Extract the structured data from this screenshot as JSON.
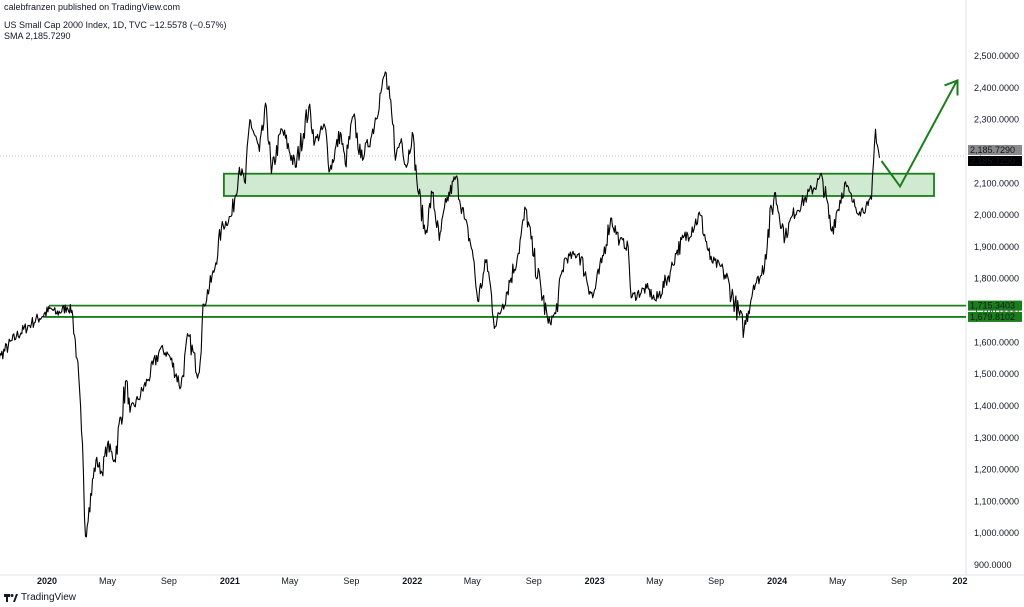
{
  "publisher_line": "calebfranzen published on TradingView.com",
  "legend": {
    "symbol_line": "US Small Cap 2000 Index, 1D, TVC  −12.5578 (−0.57%)",
    "sma_line": "SMA  2,185.7290"
  },
  "branding": {
    "text": "TradingView",
    "icon": "tradingview-logo-icon"
  },
  "colors": {
    "price": "#000000",
    "support": "#1a7f1a",
    "zone_fill": "#c8e6c9",
    "arrow": "#1a7f1a",
    "last_price_bg": "#000000",
    "sma_bg": "#8a8a8a"
  },
  "chart_data": {
    "type": "line",
    "title": "US Small Cap 2000 Index, 1D, TVC",
    "ylim": [
      900,
      2550
    ],
    "y_ticks": [
      "900.0000",
      "1,000.0000",
      "1,100.0000",
      "1,200.0000",
      "1,300.0000",
      "1,400.0000",
      "1,500.0000",
      "1,600.0000",
      "1,700.0000",
      "1,800.0000",
      "1,900.0000",
      "2,000.0000",
      "2,100.0000",
      "2,200.0000",
      "2,300.0000",
      "2,400.0000",
      "2,500.0000"
    ],
    "x_ticks": [
      {
        "label": "2020",
        "date": "2020-01-01",
        "year": true
      },
      {
        "label": "May",
        "date": "2020-05-01"
      },
      {
        "label": "Sep",
        "date": "2020-09-01"
      },
      {
        "label": "2021",
        "date": "2021-01-01",
        "year": true
      },
      {
        "label": "May",
        "date": "2021-05-01"
      },
      {
        "label": "Sep",
        "date": "2021-09-01"
      },
      {
        "label": "2022",
        "date": "2022-01-01",
        "year": true
      },
      {
        "label": "May",
        "date": "2022-05-01"
      },
      {
        "label": "Sep",
        "date": "2022-09-01"
      },
      {
        "label": "2023",
        "date": "2023-01-01",
        "year": true
      },
      {
        "label": "May",
        "date": "2023-05-01"
      },
      {
        "label": "Sep",
        "date": "2023-09-01"
      },
      {
        "label": "2024",
        "date": "2024-01-01",
        "year": true
      },
      {
        "label": "May",
        "date": "2024-05-01"
      },
      {
        "label": "Sep",
        "date": "2024-09-01"
      },
      {
        "label": "202",
        "date": "2025-01-01",
        "year": true
      }
    ],
    "series": [
      {
        "values": [
          [
            "2019-09-01",
            1480
          ],
          [
            "2019-10-01",
            1560
          ],
          [
            "2019-11-01",
            1620
          ],
          [
            "2019-12-01",
            1660
          ],
          [
            "2020-01-10",
            1705
          ],
          [
            "2020-01-20",
            1690
          ],
          [
            "2020-02-10",
            1710
          ],
          [
            "2020-02-20",
            1700
          ],
          [
            "2020-03-01",
            1550
          ],
          [
            "2020-03-10",
            1320
          ],
          [
            "2020-03-18",
            990
          ],
          [
            "2020-03-25",
            1080
          ],
          [
            "2020-04-08",
            1230
          ],
          [
            "2020-04-20",
            1190
          ],
          [
            "2020-05-01",
            1280
          ],
          [
            "2020-05-15",
            1230
          ],
          [
            "2020-06-08",
            1480
          ],
          [
            "2020-06-15",
            1380
          ],
          [
            "2020-07-01",
            1420
          ],
          [
            "2020-07-20",
            1480
          ],
          [
            "2020-08-15",
            1580
          ],
          [
            "2020-09-01",
            1560
          ],
          [
            "2020-09-25",
            1460
          ],
          [
            "2020-10-10",
            1620
          ],
          [
            "2020-10-30",
            1500
          ],
          [
            "2020-11-10",
            1720
          ],
          [
            "2020-11-30",
            1820
          ],
          [
            "2020-12-15",
            1960
          ],
          [
            "2021-01-05",
            2000
          ],
          [
            "2021-01-20",
            2150
          ],
          [
            "2021-02-01",
            2100
          ],
          [
            "2021-02-10",
            2300
          ],
          [
            "2021-03-01",
            2200
          ],
          [
            "2021-03-15",
            2340
          ],
          [
            "2021-03-25",
            2130
          ],
          [
            "2021-04-15",
            2270
          ],
          [
            "2021-05-12",
            2150
          ],
          [
            "2021-06-08",
            2340
          ],
          [
            "2021-06-20",
            2230
          ],
          [
            "2021-07-10",
            2280
          ],
          [
            "2021-07-20",
            2140
          ],
          [
            "2021-08-10",
            2260
          ],
          [
            "2021-08-20",
            2160
          ],
          [
            "2021-09-05",
            2310
          ],
          [
            "2021-09-20",
            2180
          ],
          [
            "2021-10-10",
            2240
          ],
          [
            "2021-11-01",
            2400
          ],
          [
            "2021-11-08",
            2450
          ],
          [
            "2021-11-30",
            2190
          ],
          [
            "2021-12-10",
            2240
          ],
          [
            "2021-12-20",
            2150
          ],
          [
            "2022-01-01",
            2260
          ],
          [
            "2022-01-10",
            2110
          ],
          [
            "2022-01-27",
            1940
          ],
          [
            "2022-02-10",
            2070
          ],
          [
            "2022-02-24",
            1920
          ],
          [
            "2022-03-10",
            2040
          ],
          [
            "2022-03-29",
            2120
          ],
          [
            "2022-04-15",
            1990
          ],
          [
            "2022-05-01",
            1890
          ],
          [
            "2022-05-12",
            1730
          ],
          [
            "2022-05-30",
            1860
          ],
          [
            "2022-06-16",
            1650
          ],
          [
            "2022-07-01",
            1720
          ],
          [
            "2022-08-01",
            1880
          ],
          [
            "2022-08-16",
            2020
          ],
          [
            "2022-09-01",
            1870
          ],
          [
            "2022-09-30",
            1660
          ],
          [
            "2022-10-15",
            1690
          ],
          [
            "2022-11-01",
            1860
          ],
          [
            "2022-12-01",
            1880
          ],
          [
            "2022-12-28",
            1740
          ],
          [
            "2023-01-15",
            1850
          ],
          [
            "2023-02-02",
            1990
          ],
          [
            "2023-02-20",
            1920
          ],
          [
            "2023-03-09",
            1900
          ],
          [
            "2023-03-15",
            1740
          ],
          [
            "2023-04-15",
            1770
          ],
          [
            "2023-05-04",
            1730
          ],
          [
            "2023-06-01",
            1820
          ],
          [
            "2023-06-15",
            1890
          ],
          [
            "2023-07-31",
            2000
          ],
          [
            "2023-08-20",
            1860
          ],
          [
            "2023-09-15",
            1830
          ],
          [
            "2023-10-27",
            1640
          ],
          [
            "2023-11-15",
            1780
          ],
          [
            "2023-12-01",
            1810
          ],
          [
            "2023-12-27",
            2070
          ],
          [
            "2024-01-17",
            1930
          ],
          [
            "2024-02-01",
            2000
          ],
          [
            "2024-03-01",
            2060
          ],
          [
            "2024-03-31",
            2120
          ],
          [
            "2024-04-19",
            1950
          ],
          [
            "2024-05-15",
            2100
          ],
          [
            "2024-06-01",
            2040
          ],
          [
            "2024-06-14",
            2010
          ],
          [
            "2024-07-01",
            2030
          ],
          [
            "2024-07-08",
            2050
          ],
          [
            "2024-07-16",
            2270
          ],
          [
            "2024-07-24",
            2180
          ]
        ]
      }
    ],
    "annotations": {
      "resistance_zone": [
        2060,
        2130
      ],
      "support_lines": [
        {
          "value": 1715.3403,
          "label": "1,715.3403"
        },
        {
          "value": 1679.8102,
          "label": "1,679.8102"
        }
      ],
      "projection_arrow": [
        [
          "2024-07-28",
          2170
        ],
        [
          "2024-09-03",
          2090
        ],
        [
          "2024-12-25",
          2420
        ]
      ],
      "last_price_label": "2,185.7290",
      "sma_label": "2,185.7290",
      "price_dotted_level": 2185.729
    }
  }
}
